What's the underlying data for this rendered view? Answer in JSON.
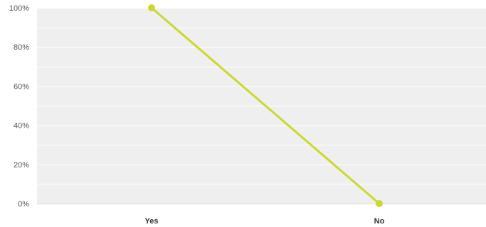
{
  "chart_data": {
    "type": "line",
    "categories": [
      "Yes",
      "No"
    ],
    "series": [
      {
        "values": [
          100,
          0
        ]
      }
    ],
    "ytick_labels": [
      "0%",
      "20%",
      "40%",
      "60%",
      "80%",
      "100%"
    ],
    "ylim": [
      0,
      100
    ],
    "y_minor_step": 10,
    "grid": true,
    "legend": "none",
    "colors": {
      "line": "#cdd82e",
      "plot_background": "#efefef",
      "gridline": "#ffffff"
    }
  }
}
